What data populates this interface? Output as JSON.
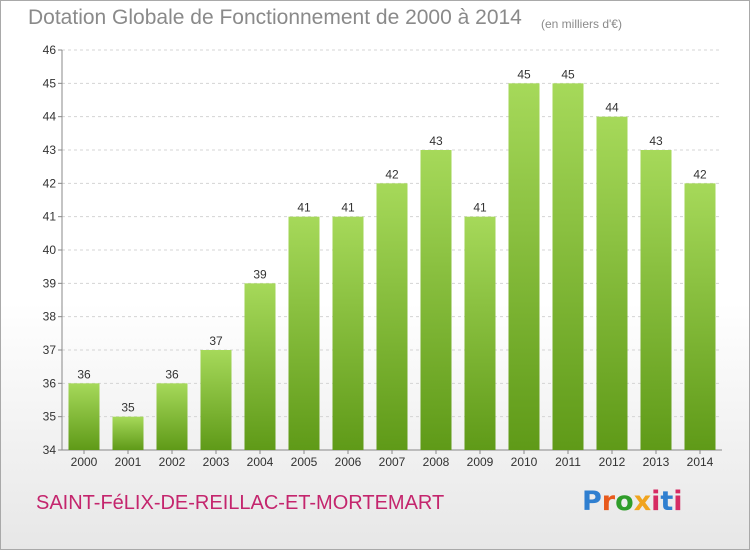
{
  "header": {
    "title": "Dotation Globale de Fonctionnement de 2000 à 2014",
    "subtitle": "(en milliers d'€)"
  },
  "footer": {
    "commune": "SAINT-FéLIX-DE-REILLAC-ET-MORTEMART",
    "logo": {
      "p": "P",
      "r": "r",
      "o": "o",
      "x": "x",
      "i": "i",
      "t": "t",
      "i2": "i"
    }
  },
  "colors": {
    "bar_light": "#a6d95a",
    "bar_dark": "#5f9a18",
    "title": "#8a8a8a",
    "commune": "#c4256d"
  },
  "chart_data": {
    "type": "bar",
    "title": "Dotation Globale de Fonctionnement de 2000 à 2014",
    "subtitle": "(en milliers d'€)",
    "categories": [
      "2000",
      "2001",
      "2002",
      "2003",
      "2004",
      "2005",
      "2006",
      "2007",
      "2008",
      "2009",
      "2010",
      "2011",
      "2012",
      "2013",
      "2014"
    ],
    "values": [
      36,
      35,
      36,
      37,
      39,
      41,
      41,
      42,
      43,
      41,
      45,
      45,
      44,
      43,
      42
    ],
    "ylim": [
      34,
      46
    ],
    "yticks": [
      34,
      35,
      36,
      37,
      38,
      39,
      40,
      41,
      42,
      43,
      44,
      45,
      46
    ],
    "grid": true,
    "xlabel": "",
    "ylabel": ""
  }
}
